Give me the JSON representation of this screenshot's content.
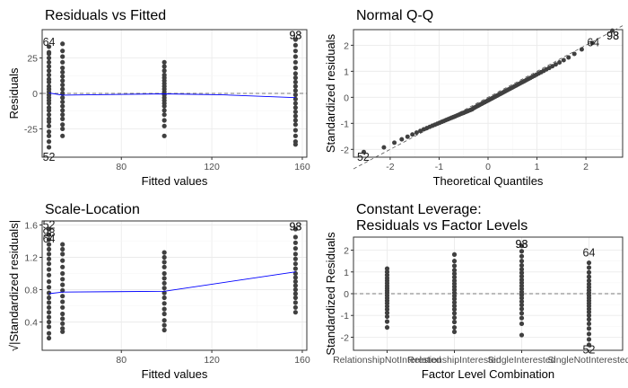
{
  "chart_data": [
    {
      "type": "scatter",
      "title": "Residuals vs Fitted",
      "xlabel": "Fitted values",
      "ylabel": "Residuals",
      "xlim": [
        45,
        162
      ],
      "ylim": [
        -45,
        45
      ],
      "x_ticks": [
        80,
        120,
        160
      ],
      "y_ticks": [
        -25,
        0,
        25
      ],
      "y_tick_labels": [
        "-25",
        "0",
        "25"
      ],
      "grid": true,
      "series": [
        {
          "x": [
            48,
            48,
            48,
            48,
            48,
            48,
            48,
            48,
            48,
            48,
            48,
            48,
            48,
            48,
            48,
            48,
            48,
            48,
            48,
            48,
            48,
            48,
            48,
            48,
            48,
            48,
            48
          ],
          "y": [
            33,
            29,
            25,
            22,
            19,
            16,
            13,
            10,
            8,
            5,
            3,
            1,
            -1,
            -3,
            -5,
            -7,
            -10,
            -12,
            -15,
            -18,
            -20,
            -23,
            -27,
            -30,
            -34,
            -38,
            28
          ]
        },
        {
          "x": [
            54,
            54,
            54,
            54,
            54,
            54,
            54,
            54,
            54,
            54,
            54,
            54,
            54,
            54,
            54,
            54,
            54,
            54,
            54,
            54
          ],
          "y": [
            35,
            30,
            26,
            22,
            18,
            15,
            12,
            9,
            6,
            3,
            0,
            -3,
            -6,
            -9,
            -12,
            -15,
            -18,
            -22,
            -25,
            -30
          ]
        },
        {
          "x": [
            99,
            99,
            99,
            99,
            99,
            99,
            99,
            99,
            99,
            99,
            99,
            99,
            99,
            99,
            99,
            99,
            99,
            99,
            99,
            99
          ],
          "y": [
            22,
            19,
            16,
            13,
            11,
            9,
            7,
            5,
            3,
            1,
            -1,
            -3,
            -5,
            -7,
            -9,
            -12,
            -15,
            -19,
            -23,
            -30
          ]
        },
        {
          "x": [
            157,
            157,
            157,
            157,
            157,
            157,
            157,
            157,
            157,
            157,
            157,
            157,
            157,
            157,
            157,
            157,
            157,
            157,
            157,
            157,
            157,
            157,
            157
          ],
          "y": [
            38,
            34,
            30,
            26,
            22,
            18,
            14,
            11,
            8,
            5,
            2,
            -1,
            -4,
            -7,
            -10,
            -13,
            -16,
            -19,
            -22,
            -26,
            -30,
            -34,
            -36
          ]
        }
      ],
      "smooth": {
        "x": [
          48,
          54,
          99,
          125,
          157
        ],
        "y": [
          0.3,
          -1.2,
          -0.3,
          -1,
          -3
        ]
      },
      "reference_line_y": 0,
      "annotations": [
        {
          "text": "64",
          "x": 48,
          "y": 36
        },
        {
          "text": "52",
          "x": 48,
          "y": -45
        },
        {
          "text": "98",
          "x": 157,
          "y": 41
        },
        {
          "text": "93",
          "x": 157,
          "y": 41
        }
      ]
    },
    {
      "type": "scatter",
      "title": "Normal Q-Q",
      "xlabel": "Theoretical Quantiles",
      "ylabel": "Standardized residuals",
      "xlim": [
        -2.75,
        2.75
      ],
      "ylim": [
        -2.3,
        2.6
      ],
      "x_ticks": [
        -2,
        -1,
        0,
        1,
        2
      ],
      "x_tick_labels": [
        "-2",
        "-1",
        "0",
        "1",
        "2"
      ],
      "y_ticks": [
        -2,
        -1,
        0,
        1,
        2
      ],
      "y_tick_labels": [
        "-2",
        "-1",
        "0",
        "1",
        "2"
      ],
      "grid": true,
      "qq_points_n": 90,
      "reference_line": {
        "x": [
          -2.75,
          2.75
        ],
        "y": [
          -2.75,
          2.75
        ]
      },
      "annotations": [
        {
          "text": "52",
          "x": -2.55,
          "y": -2.3
        },
        {
          "text": "64",
          "x": 2.15,
          "y": 2.1
        },
        {
          "text": "98",
          "x": 2.55,
          "y": 2.35
        },
        {
          "text": "93",
          "x": 2.55,
          "y": 2.35
        }
      ]
    },
    {
      "type": "scatter",
      "title": "Scale-Location",
      "xlabel": "Fitted values",
      "ylabel": "√|Standardized residuals|",
      "xlim": [
        45,
        162
      ],
      "ylim": [
        0.05,
        1.65
      ],
      "x_ticks": [
        80,
        120,
        160
      ],
      "y_ticks": [
        0.4,
        0.8,
        1.2,
        1.6
      ],
      "y_tick_labels": [
        "0.4",
        "0.8",
        "1.2",
        "1.6"
      ],
      "grid": true,
      "series": [
        {
          "x": [
            48,
            48,
            48,
            48,
            48,
            48,
            48,
            48,
            48,
            48,
            48,
            48,
            48,
            48,
            48,
            48,
            48,
            48,
            48,
            48,
            48,
            48
          ],
          "y": [
            1.48,
            1.42,
            1.36,
            1.3,
            1.24,
            1.18,
            1.12,
            1.05,
            0.98,
            0.9,
            0.83,
            0.76,
            0.7,
            0.64,
            0.58,
            0.52,
            0.46,
            0.4,
            0.34,
            0.26,
            0.2,
            1.55
          ]
        },
        {
          "x": [
            54,
            54,
            54,
            54,
            54,
            54,
            54,
            54,
            54,
            54,
            54,
            54,
            54,
            54,
            54,
            54,
            54
          ],
          "y": [
            1.36,
            1.3,
            1.24,
            1.16,
            1.08,
            1.0,
            0.93,
            0.86,
            0.79,
            0.72,
            0.65,
            0.58,
            0.5,
            0.44,
            0.38,
            0.32,
            0.28
          ]
        },
        {
          "x": [
            99,
            99,
            99,
            99,
            99,
            99,
            99,
            99,
            99,
            99,
            99,
            99,
            99,
            99,
            99,
            99
          ],
          "y": [
            1.26,
            1.2,
            1.14,
            1.08,
            1.0,
            0.94,
            0.88,
            0.82,
            0.76,
            0.7,
            0.63,
            0.56,
            0.5,
            0.42,
            0.36,
            0.3
          ]
        },
        {
          "x": [
            157,
            157,
            157,
            157,
            157,
            157,
            157,
            157,
            157,
            157,
            157,
            157,
            157,
            157,
            157,
            157,
            157,
            157
          ],
          "y": [
            1.55,
            1.45,
            1.38,
            1.31,
            1.24,
            1.18,
            1.12,
            1.06,
            1.0,
            0.95,
            0.9,
            0.85,
            0.8,
            0.75,
            0.7,
            0.64,
            0.58,
            0.52
          ]
        }
      ],
      "smooth": {
        "x": [
          48,
          54,
          99,
          157
        ],
        "y": [
          0.75,
          0.77,
          0.78,
          1.02
        ]
      },
      "annotations": [
        {
          "text": "52",
          "x": 48,
          "y": 1.6
        },
        {
          "text": "98",
          "x": 48,
          "y": 1.5
        },
        {
          "text": "64",
          "x": 48,
          "y": 1.43
        },
        {
          "text": "93",
          "x": 157,
          "y": 1.58
        },
        {
          "text": "98",
          "x": 157,
          "y": 1.58
        }
      ]
    },
    {
      "type": "scatter",
      "title_lines": [
        "Constant Leverage:",
        "Residuals vs Factor Levels"
      ],
      "xlabel": "Factor Level Combination",
      "ylabel": "Standardized Residuals",
      "xlim": [
        0.5,
        4.5
      ],
      "ylim": [
        -2.6,
        2.6
      ],
      "categories": [
        "RelationshipNotInterested",
        "RelationshipInterested",
        "SingleInterested",
        "SingleNotInterested"
      ],
      "y_ticks": [
        -2,
        -1,
        0,
        1,
        2
      ],
      "y_tick_labels": [
        "-2",
        "-1",
        "0",
        "1",
        "2"
      ],
      "grid": true,
      "reference_line_y": 0,
      "series": [
        {
          "x": [
            1,
            1,
            1,
            1,
            1,
            1,
            1,
            1,
            1,
            1,
            1,
            1,
            1,
            1,
            1,
            1,
            1,
            1,
            1,
            1
          ],
          "y": [
            1.15,
            1.0,
            0.86,
            0.72,
            0.6,
            0.48,
            0.36,
            0.25,
            0.14,
            0.04,
            -0.08,
            -0.2,
            -0.32,
            -0.44,
            -0.58,
            -0.72,
            -0.88,
            -1.05,
            -1.28,
            -1.55
          ]
        },
        {
          "x": [
            2,
            2,
            2,
            2,
            2,
            2,
            2,
            2,
            2,
            2,
            2,
            2,
            2,
            2,
            2,
            2,
            2,
            2,
            2,
            2,
            2
          ],
          "y": [
            1.8,
            1.5,
            1.28,
            1.08,
            0.92,
            0.76,
            0.6,
            0.46,
            0.32,
            0.18,
            0.04,
            -0.1,
            -0.24,
            -0.4,
            -0.56,
            -0.72,
            -0.9,
            -1.1,
            -1.3,
            -1.55,
            -1.75
          ]
        },
        {
          "x": [
            3,
            3,
            3,
            3,
            3,
            3,
            3,
            3,
            3,
            3,
            3,
            3,
            3,
            3,
            3,
            3,
            3,
            3,
            3,
            3,
            3,
            3
          ],
          "y": [
            2.2,
            1.95,
            1.72,
            1.5,
            1.3,
            1.12,
            0.96,
            0.8,
            0.64,
            0.5,
            0.36,
            0.22,
            0.08,
            -0.06,
            -0.2,
            -0.36,
            -0.52,
            -0.7,
            -0.9,
            -1.12,
            -1.38,
            -1.9
          ]
        },
        {
          "x": [
            4,
            4,
            4,
            4,
            4,
            4,
            4,
            4,
            4,
            4,
            4,
            4,
            4,
            4,
            4,
            4,
            4,
            4,
            4,
            4,
            4,
            4,
            4
          ],
          "y": [
            1.42,
            1.2,
            0.98,
            0.78,
            0.6,
            0.44,
            0.3,
            0.16,
            0.04,
            -0.08,
            -0.2,
            -0.32,
            -0.44,
            -0.56,
            -0.7,
            -0.84,
            -1.0,
            -1.18,
            -1.38,
            -1.6,
            -1.85,
            -2.1,
            -2.35
          ]
        }
      ],
      "annotations": [
        {
          "text": "93",
          "x": 3,
          "y": 2.28
        },
        {
          "text": "98",
          "x": 3,
          "y": 2.28
        },
        {
          "text": "64",
          "x": 4,
          "y": 1.88
        },
        {
          "text": "52",
          "x": 4,
          "y": -2.58
        }
      ]
    }
  ]
}
